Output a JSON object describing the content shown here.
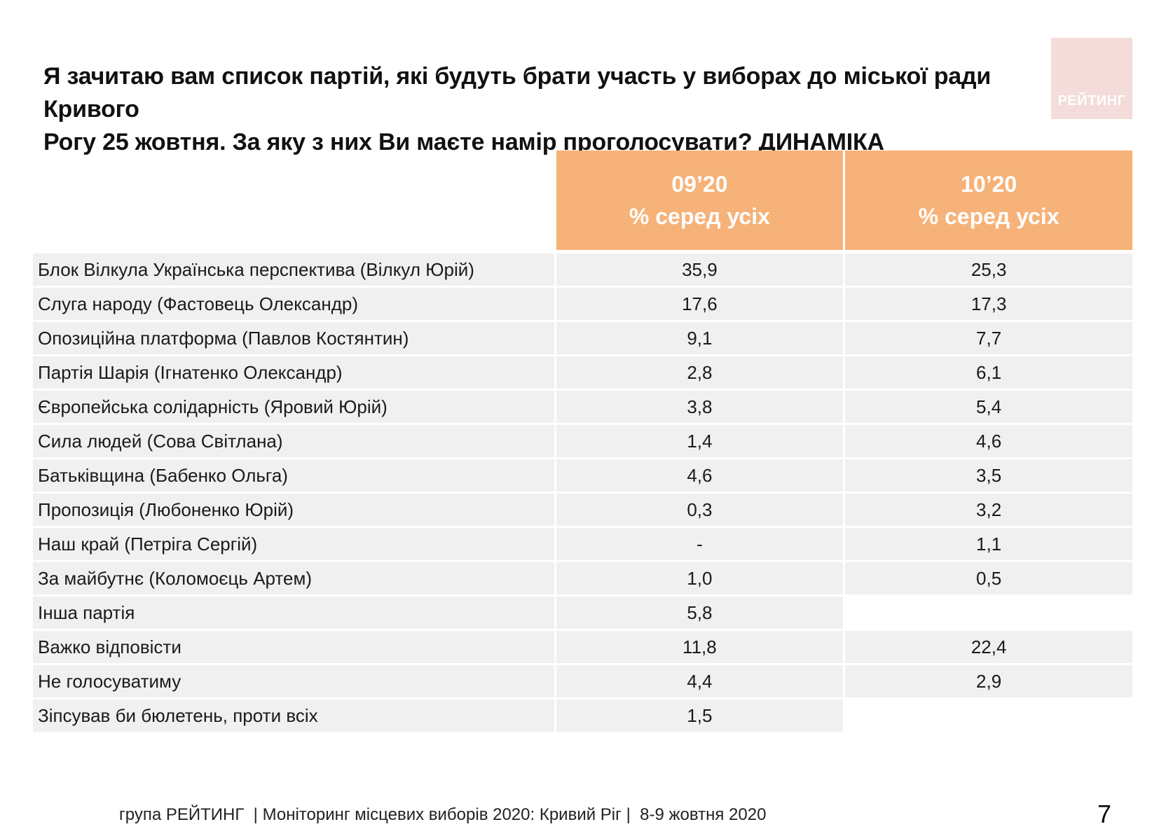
{
  "title_line1": "Я зачитаю вам список партій, які будуть брати участь у виборах до міської ради Кривого",
  "title_line2": "Рогу 25 жовтня. За яку з них Ви маєте намір проголосувати? ДИНАМІКА",
  "logo_text": "РЕЙТИНГ",
  "columns": [
    {
      "period": "09’20",
      "subtitle": "% серед усіх"
    },
    {
      "period": "10’20",
      "subtitle": "% серед усіх"
    }
  ],
  "rows": [
    {
      "party": "Блок Вілкула Українська перспектива (Вілкул Юрій)",
      "sep": "35,9",
      "oct": "25,3"
    },
    {
      "party": "Слуга народу (Фастовець Олександр)",
      "sep": "17,6",
      "oct": "17,3"
    },
    {
      "party": "Опозиційна платформа (Павлов Костянтин)",
      "sep": "9,1",
      "oct": "7,7"
    },
    {
      "party": "Партія Шарія (Ігнатенко Олександр)",
      "sep": "2,8",
      "oct": "6,1"
    },
    {
      "party": "Європейська солідарність (Яровий Юрій)",
      "sep": "3,8",
      "oct": "5,4"
    },
    {
      "party": "Сила людей (Сова Світлана)",
      "sep": "1,4",
      "oct": "4,6"
    },
    {
      "party": "Батьківщина (Бабенко Ольга)",
      "sep": "4,6",
      "oct": "3,5"
    },
    {
      "party": "Пропозиція (Любоненко Юрій)",
      "sep": "0,3",
      "oct": "3,2"
    },
    {
      "party": "Наш край (Петріга Сергій)",
      "sep": "-",
      "oct": "1,1"
    },
    {
      "party": "За майбутнє (Коломоєць Артем)",
      "sep": "1,0",
      "oct": "0,5"
    },
    {
      "party": "Інша партія",
      "sep": "5,8",
      "oct": null
    },
    {
      "party": "Важко відповісти",
      "sep": "11,8",
      "oct": "22,4"
    },
    {
      "party": "Не голосуватиму",
      "sep": "4,4",
      "oct": "2,9"
    },
    {
      "party": "Зіпсував би бюлетень, проти всіх",
      "sep": "1,5",
      "oct": null
    }
  ],
  "footer": "група РЕЙТИНГ  | Моніторинг місцевих виборів 2020: Кривий Ріг |  8-9 жовтня 2020",
  "page_number": "7",
  "colors": {
    "header_fill": "#f6b278",
    "row_fill": "#f0f0f0",
    "logo_fill": "#f3dcd9"
  }
}
